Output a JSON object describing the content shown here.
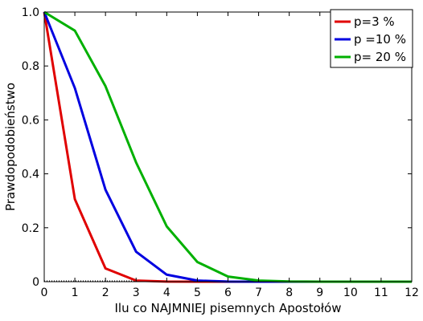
{
  "chart_data": {
    "type": "line",
    "xlabel": "Ilu co NAJMNIEJ pisemnych Apostołów",
    "ylabel": "Prawdopodobieństwo",
    "x": [
      0,
      1,
      2,
      3,
      4,
      5,
      6,
      7,
      8,
      9,
      10,
      11,
      12
    ],
    "xlim": [
      0,
      12
    ],
    "ylim": [
      0,
      1
    ],
    "x_ticks": [
      "0",
      "1",
      "2",
      "3",
      "4",
      "5",
      "6",
      "7",
      "8",
      "9",
      "10",
      "11",
      "12"
    ],
    "y_ticks": [
      "0",
      "0.2",
      "0.4",
      "0.6",
      "0.8",
      "1.0"
    ],
    "grid": false,
    "legend_position": "top-right",
    "series": [
      {
        "name": "p=3 %",
        "color": "#e00000",
        "values": [
          1.0,
          0.306,
          0.049,
          0.004,
          0.0002,
          0.0,
          0.0,
          0.0,
          0.0,
          0.0,
          0.0,
          0.0,
          0.0
        ]
      },
      {
        "name": "p =10 %",
        "color": "#0000e0",
        "values": [
          1.0,
          0.718,
          0.341,
          0.111,
          0.026,
          0.004,
          0.0005,
          0.0,
          0.0,
          0.0,
          0.0,
          0.0,
          0.0
        ]
      },
      {
        "name": "p= 20 %",
        "color": "#00b000",
        "values": [
          1.0,
          0.931,
          0.725,
          0.442,
          0.205,
          0.073,
          0.019,
          0.004,
          0.0006,
          0.0001,
          0.0,
          0.0,
          0.0
        ]
      }
    ]
  }
}
